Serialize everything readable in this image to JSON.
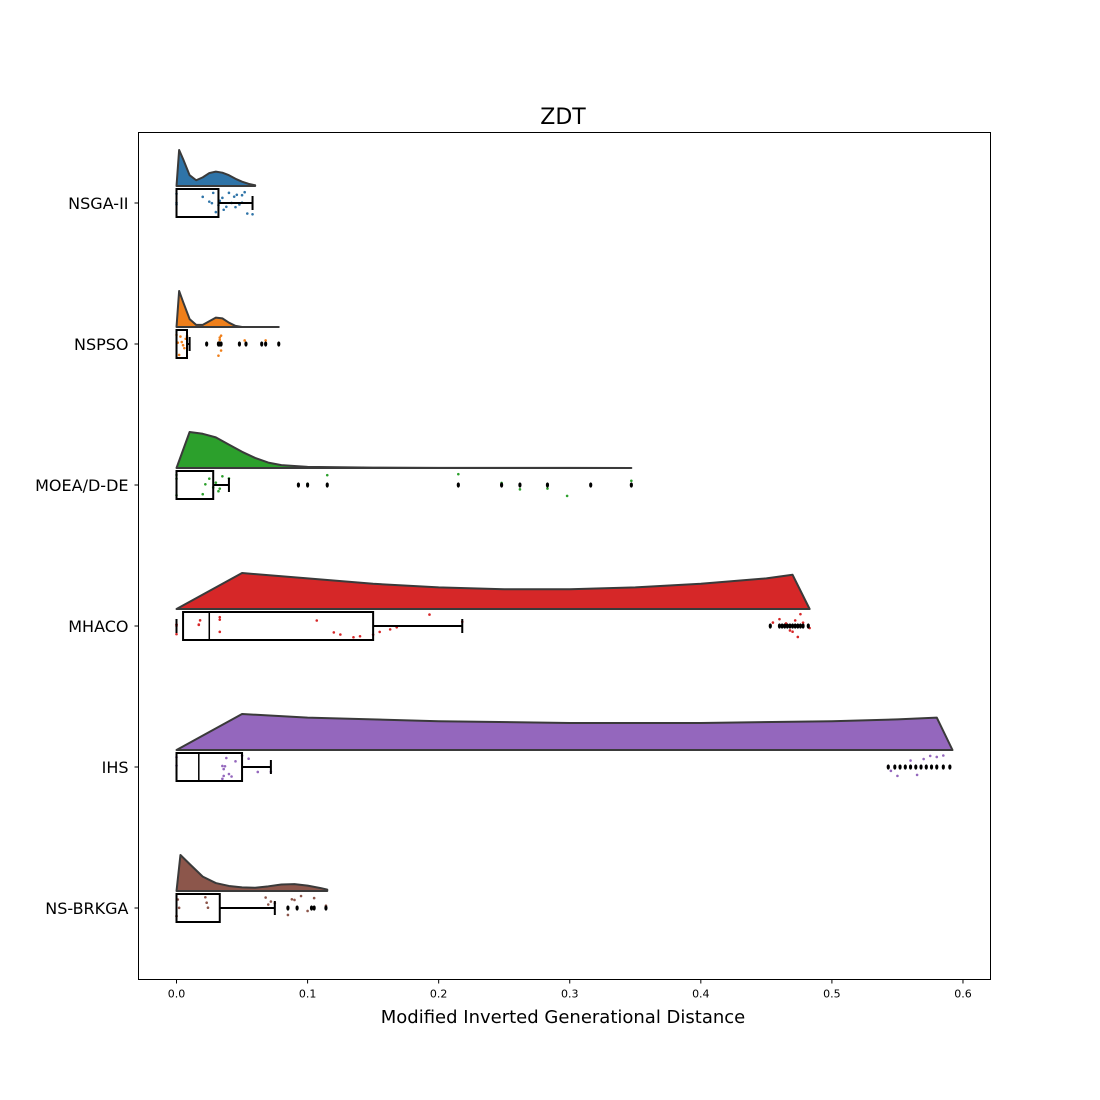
{
  "chart_data": {
    "type": "raincloud",
    "title": "ZDT",
    "xlabel": "Modified Inverted Generational Distance",
    "ylabel": "",
    "xlim": [
      -0.029,
      0.621
    ],
    "xticks": [
      0.0,
      0.1,
      0.2,
      0.3,
      0.4,
      0.5,
      0.6
    ],
    "xtick_labels": [
      "0.0",
      "0.1",
      "0.2",
      "0.3",
      "0.4",
      "0.5",
      "0.6"
    ],
    "grid": false,
    "legend": "none",
    "categories": [
      "NSGA-II",
      "NSPSO",
      "MOEA/D-DE",
      "MHACO",
      "IHS",
      "NS-BRKGA"
    ],
    "series": [
      {
        "name": "NSGA-II",
        "color": "#2f74a8",
        "box": {
          "q1": 0.0,
          "median": 0.0,
          "q3": 0.032,
          "whisker_low": 0.0,
          "whisker_high": 0.058
        },
        "density": {
          "x": [
            0.0,
            0.002,
            0.005,
            0.01,
            0.015,
            0.02,
            0.025,
            0.03,
            0.035,
            0.04,
            0.045,
            0.05,
            0.055,
            0.06
          ],
          "y": [
            0.0,
            1.0,
            0.75,
            0.3,
            0.16,
            0.24,
            0.36,
            0.4,
            0.37,
            0.3,
            0.2,
            0.12,
            0.06,
            0.02
          ]
        },
        "points": [
          0.0,
          0.0,
          0.0,
          0.02,
          0.025,
          0.027,
          0.028,
          0.03,
          0.032,
          0.033,
          0.035,
          0.036,
          0.038,
          0.04,
          0.042,
          0.044,
          0.045,
          0.046,
          0.048,
          0.05,
          0.05,
          0.052,
          0.054,
          0.058
        ],
        "outliers": []
      },
      {
        "name": "NSPSO",
        "color": "#ef7f1a",
        "box": {
          "q1": 0.0,
          "median": 0.0,
          "q3": 0.008,
          "whisker_low": 0.0,
          "whisker_high": 0.01
        },
        "density": {
          "x": [
            0.0,
            0.002,
            0.005,
            0.01,
            0.015,
            0.02,
            0.025,
            0.03,
            0.035,
            0.04,
            0.045,
            0.05,
            0.06,
            0.07,
            0.078
          ],
          "y": [
            0.0,
            1.0,
            0.7,
            0.22,
            0.06,
            0.06,
            0.16,
            0.26,
            0.24,
            0.12,
            0.03,
            0.0,
            0.0,
            0.0,
            0.0
          ]
        },
        "points": [
          0.0,
          0.001,
          0.002,
          0.003,
          0.004,
          0.005,
          0.006,
          0.007,
          0.008,
          0.032,
          0.032,
          0.033,
          0.033,
          0.033,
          0.034,
          0.034,
          0.052,
          0.068
        ],
        "outliers": [
          0.023,
          0.032,
          0.033,
          0.034,
          0.048,
          0.053,
          0.065,
          0.068,
          0.078
        ]
      },
      {
        "name": "MOEA/D-DE",
        "color": "#2ca02c",
        "box": {
          "q1": 0.0,
          "median": 0.0,
          "q3": 0.028,
          "whisker_low": 0.0,
          "whisker_high": 0.04
        },
        "density": {
          "x": [
            0.0,
            0.01,
            0.02,
            0.03,
            0.04,
            0.05,
            0.06,
            0.07,
            0.08,
            0.1,
            0.15,
            0.2,
            0.25,
            0.3,
            0.347
          ],
          "y": [
            0.0,
            1.0,
            0.95,
            0.85,
            0.65,
            0.45,
            0.28,
            0.15,
            0.08,
            0.03,
            0.01,
            0.005,
            0.005,
            0.005,
            0.0
          ]
        },
        "points": [
          0.0,
          0.0,
          0.0,
          0.02,
          0.022,
          0.025,
          0.028,
          0.03,
          0.032,
          0.033,
          0.035,
          0.04,
          0.1,
          0.115,
          0.215,
          0.248,
          0.262,
          0.283,
          0.298,
          0.347
        ],
        "outliers": [
          0.093,
          0.1,
          0.115,
          0.215,
          0.248,
          0.262,
          0.283,
          0.316,
          0.347
        ]
      },
      {
        "name": "MHACO",
        "color": "#d62728",
        "box": {
          "q1": 0.005,
          "median": 0.025,
          "q3": 0.15,
          "whisker_low": 0.0,
          "whisker_high": 0.218
        },
        "density": {
          "x": [
            0.0,
            0.05,
            0.1,
            0.15,
            0.2,
            0.25,
            0.3,
            0.35,
            0.4,
            0.45,
            0.47,
            0.483
          ],
          "y": [
            0.0,
            1.0,
            0.85,
            0.7,
            0.6,
            0.55,
            0.55,
            0.6,
            0.7,
            0.85,
            0.95,
            0.0
          ]
        },
        "points": [
          0.0,
          0.0,
          0.0,
          0.0,
          0.017,
          0.017,
          0.018,
          0.033,
          0.033,
          0.033,
          0.107,
          0.12,
          0.125,
          0.135,
          0.14,
          0.15,
          0.155,
          0.163,
          0.168,
          0.193,
          0.218,
          0.455,
          0.46,
          0.465,
          0.468,
          0.47,
          0.472,
          0.474,
          0.476,
          0.478,
          0.483
        ],
        "outliers": [
          0.453,
          0.46,
          0.462,
          0.464,
          0.466,
          0.468,
          0.47,
          0.472,
          0.474,
          0.476,
          0.478,
          0.482
        ]
      },
      {
        "name": "IHS",
        "color": "#9467bd",
        "box": {
          "q1": 0.0,
          "median": 0.017,
          "q3": 0.05,
          "whisker_low": 0.0,
          "whisker_high": 0.072
        },
        "density": {
          "x": [
            0.0,
            0.05,
            0.1,
            0.2,
            0.3,
            0.4,
            0.5,
            0.55,
            0.58,
            0.592
          ],
          "y": [
            0.0,
            1.0,
            0.9,
            0.8,
            0.75,
            0.75,
            0.8,
            0.85,
            0.9,
            0.0
          ]
        },
        "points": [
          0.0,
          0.0,
          0.035,
          0.035,
          0.036,
          0.036,
          0.037,
          0.038,
          0.04,
          0.042,
          0.045,
          0.05,
          0.055,
          0.062,
          0.072,
          0.545,
          0.55,
          0.56,
          0.565,
          0.57,
          0.575,
          0.58,
          0.585,
          0.59
        ],
        "outliers": [
          0.543,
          0.548,
          0.552,
          0.556,
          0.56,
          0.564,
          0.568,
          0.572,
          0.576,
          0.58,
          0.585,
          0.59
        ]
      },
      {
        "name": "NS-BRKGA",
        "color": "#8c564b",
        "box": {
          "q1": 0.0,
          "median": 0.0,
          "q3": 0.033,
          "whisker_low": 0.0,
          "whisker_high": 0.075
        },
        "density": {
          "x": [
            0.0,
            0.003,
            0.01,
            0.02,
            0.03,
            0.04,
            0.05,
            0.06,
            0.07,
            0.08,
            0.09,
            0.1,
            0.11,
            0.115
          ],
          "y": [
            0.0,
            1.0,
            0.75,
            0.4,
            0.22,
            0.14,
            0.1,
            0.09,
            0.13,
            0.18,
            0.19,
            0.15,
            0.08,
            0.04
          ]
        },
        "points": [
          0.0,
          0.0,
          0.001,
          0.002,
          0.022,
          0.023,
          0.024,
          0.068,
          0.07,
          0.072,
          0.075,
          0.085,
          0.088,
          0.09,
          0.095,
          0.1,
          0.105,
          0.114
        ],
        "outliers": [
          0.085,
          0.092,
          0.103,
          0.105,
          0.114
        ]
      }
    ]
  }
}
